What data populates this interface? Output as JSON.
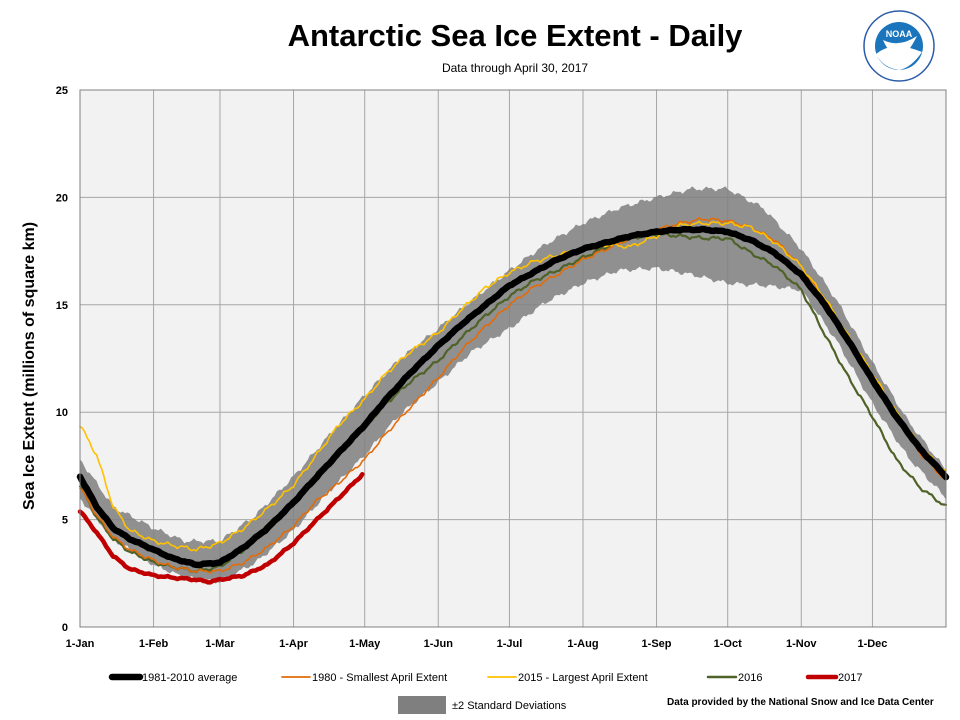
{
  "header": {
    "title": "Antarctic Sea Ice Extent - Daily",
    "subtitle": "Data through April 30, 2017"
  },
  "logo": {
    "text": "NOAA",
    "icon": "noaa-logo-icon"
  },
  "credit": "Data provided by the National Snow and Ice Data Center",
  "colors": {
    "plot_bg": "#f2f2f2",
    "grid": "#a6a6a6",
    "band": "#7f7f7f",
    "avg": "#000000",
    "y1980": "#e36c09",
    "y2015": "#ffc000",
    "y2016": "#4f6228",
    "y2017": "#c00000"
  },
  "chart_data": {
    "type": "line",
    "title": "Antarctic Sea Ice Extent - Daily",
    "subtitle": "Data through April 30, 2017",
    "ylabel": "Sea Ice Extent (millions of square km)",
    "xlabel": "",
    "ylim": [
      0,
      25
    ],
    "xlim": [
      1,
      366
    ],
    "yticks": [
      0,
      5,
      10,
      15,
      20,
      25
    ],
    "xticks": [
      {
        "label": "1-Jan",
        "day": 1
      },
      {
        "label": "1-Feb",
        "day": 32
      },
      {
        "label": "1-Mar",
        "day": 60
      },
      {
        "label": "1-Apr",
        "day": 91
      },
      {
        "label": "1-May",
        "day": 121
      },
      {
        "label": "1-Jun",
        "day": 152
      },
      {
        "label": "1-Jul",
        "day": 182
      },
      {
        "label": "1-Aug",
        "day": 213
      },
      {
        "label": "1-Sep",
        "day": 244
      },
      {
        "label": "1-Oct",
        "day": 274
      },
      {
        "label": "1-Nov",
        "day": 305
      },
      {
        "label": "1-Dec",
        "day": 335
      }
    ],
    "grid": true,
    "legend_position": "bottom",
    "band": {
      "name": "±2 Standard Deviations",
      "x": [
        1,
        15,
        32,
        45,
        60,
        75,
        91,
        105,
        121,
        135,
        152,
        166,
        182,
        197,
        213,
        228,
        244,
        259,
        274,
        289,
        305,
        320,
        335,
        350,
        366
      ],
      "upper": [
        7.8,
        5.6,
        4.6,
        4.0,
        4.0,
        5.2,
        7.0,
        8.8,
        10.8,
        12.4,
        13.9,
        15.2,
        16.6,
        17.8,
        18.8,
        19.5,
        20.0,
        20.4,
        20.4,
        19.5,
        17.6,
        15.2,
        12.3,
        9.6,
        7.3
      ],
      "lower": [
        6.0,
        4.1,
        2.9,
        2.3,
        2.1,
        3.0,
        4.5,
        6.2,
        8.0,
        9.8,
        11.4,
        12.8,
        13.9,
        15.1,
        16.0,
        16.6,
        16.7,
        16.4,
        16.0,
        15.9,
        15.7,
        13.3,
        10.4,
        7.9,
        6.0
      ]
    },
    "series": [
      {
        "name": "1981-2010 average",
        "color_key": "avg",
        "x": [
          1,
          8,
          15,
          22,
          32,
          40,
          50,
          60,
          70,
          80,
          91,
          100,
          110,
          121,
          130,
          140,
          152,
          162,
          172,
          182,
          192,
          202,
          213,
          223,
          233,
          244,
          254,
          264,
          274,
          284,
          294,
          305,
          315,
          325,
          335,
          345,
          355,
          366
        ],
        "y": [
          7.0,
          5.6,
          4.6,
          4.1,
          3.6,
          3.2,
          2.9,
          3.0,
          3.7,
          4.6,
          5.8,
          6.9,
          8.1,
          9.4,
          10.6,
          11.8,
          13.1,
          14.1,
          15.0,
          15.9,
          16.5,
          17.1,
          17.6,
          17.9,
          18.2,
          18.4,
          18.5,
          18.5,
          18.4,
          18.0,
          17.4,
          16.4,
          15.0,
          13.3,
          11.5,
          9.8,
          8.3,
          7.0
        ]
      },
      {
        "name": "1980 - Smallest April Extent",
        "color_key": "y1980",
        "x": [
          1,
          8,
          15,
          22,
          32,
          40,
          50,
          60,
          70,
          80,
          91,
          100,
          110,
          121,
          130,
          140,
          152,
          162,
          172,
          182,
          192,
          202,
          213,
          223,
          233,
          244,
          254,
          264,
          274,
          284,
          294,
          305,
          315,
          325,
          335,
          345,
          355,
          366
        ],
        "y": [
          6.5,
          5.2,
          4.2,
          3.6,
          3.1,
          2.8,
          2.6,
          2.6,
          3.0,
          3.7,
          4.7,
          5.8,
          6.7,
          7.8,
          9.0,
          10.2,
          11.6,
          12.9,
          14.0,
          15.0,
          15.8,
          16.4,
          17.1,
          17.6,
          18.1,
          18.5,
          18.8,
          19.0,
          18.9,
          18.6,
          18.0,
          16.8,
          15.2,
          13.4,
          11.6,
          9.8,
          8.1,
          6.8
        ]
      },
      {
        "name": "2015 - Largest April Extent",
        "color_key": "y2015",
        "x": [
          1,
          8,
          15,
          22,
          32,
          40,
          50,
          60,
          70,
          80,
          91,
          100,
          110,
          121,
          130,
          140,
          152,
          162,
          172,
          182,
          192,
          202,
          213,
          223,
          233,
          244,
          254,
          264,
          274,
          284,
          294,
          305,
          315,
          325,
          335,
          345,
          355,
          366
        ],
        "y": [
          9.4,
          8.0,
          5.6,
          4.5,
          4.0,
          3.8,
          3.6,
          3.9,
          4.6,
          5.5,
          6.6,
          7.9,
          9.4,
          10.6,
          11.8,
          12.8,
          13.7,
          14.8,
          15.8,
          16.5,
          17.0,
          17.3,
          17.6,
          17.8,
          17.7,
          18.2,
          18.7,
          18.8,
          18.8,
          18.6,
          17.9,
          16.8,
          15.3,
          13.5,
          11.8,
          10.0,
          8.4,
          7.2
        ]
      },
      {
        "name": "2016",
        "color_key": "y2016",
        "x": [
          1,
          8,
          15,
          22,
          32,
          40,
          50,
          60,
          70,
          80,
          91,
          100,
          110,
          121,
          130,
          140,
          152,
          162,
          172,
          182,
          192,
          202,
          213,
          223,
          233,
          244,
          254,
          264,
          274,
          284,
          294,
          305,
          315,
          325,
          335,
          345,
          355,
          366
        ],
        "y": [
          6.6,
          5.1,
          4.1,
          3.5,
          3.0,
          2.8,
          2.6,
          2.8,
          3.6,
          4.7,
          5.8,
          7.0,
          8.2,
          9.3,
          10.4,
          11.4,
          12.4,
          13.5,
          14.5,
          15.4,
          16.1,
          16.6,
          17.2,
          17.7,
          18.1,
          18.3,
          18.2,
          18.1,
          18.1,
          17.4,
          16.8,
          15.7,
          13.6,
          11.6,
          9.8,
          7.8,
          6.5,
          5.6
        ]
      },
      {
        "name": "2017",
        "color_key": "y2017",
        "x": [
          1,
          8,
          15,
          22,
          32,
          40,
          50,
          55,
          60,
          70,
          80,
          91,
          100,
          110,
          120
        ],
        "y": [
          5.4,
          4.4,
          3.3,
          2.7,
          2.4,
          2.3,
          2.2,
          2.1,
          2.2,
          2.4,
          2.9,
          3.9,
          4.9,
          6.0,
          7.1
        ]
      }
    ]
  }
}
